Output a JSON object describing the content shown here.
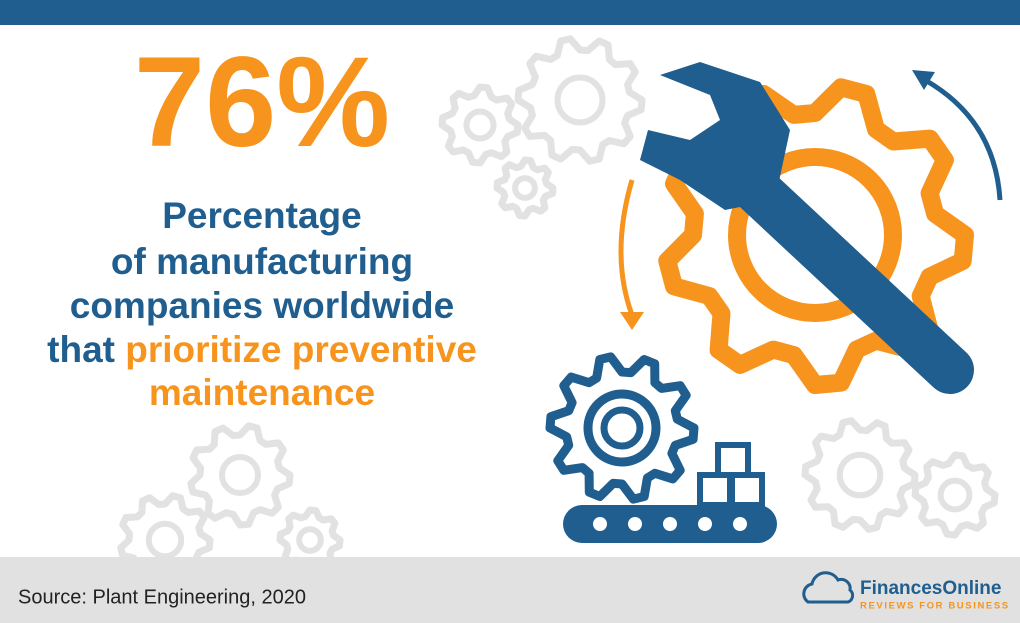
{
  "stat": "76%",
  "description": {
    "line1": "Percentage",
    "line2": "of manufacturing",
    "line3": "companies worldwide",
    "line4_start": "that",
    "line4_highlight": "prioritize preventive",
    "line5_highlight": "maintenance"
  },
  "footer": {
    "source": "Source: Plant Engineering, 2020",
    "brand": "FinancesOnline",
    "tagline": "REVIEWS FOR BUSINESS"
  }
}
